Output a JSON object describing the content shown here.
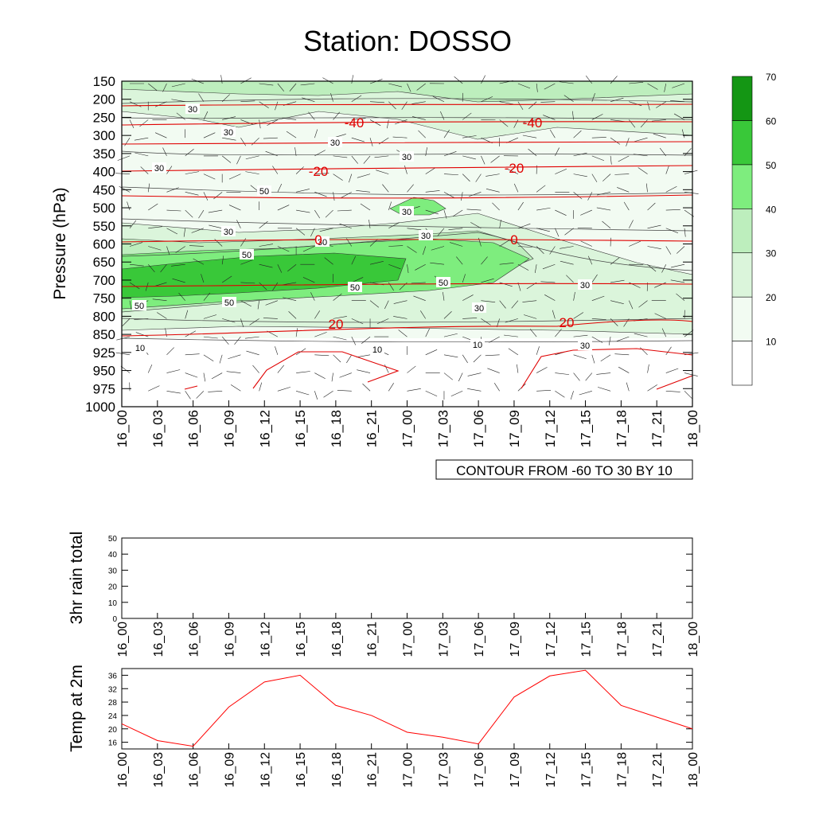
{
  "title": "Station: DOSSO",
  "time_labels": [
    "16_00",
    "16_03",
    "16_06",
    "16_09",
    "16_12",
    "16_15",
    "16_18",
    "16_21",
    "17_00",
    "17_03",
    "17_06",
    "17_09",
    "17_12",
    "17_15",
    "17_18",
    "17_21",
    "18_00"
  ],
  "chart_data": [
    {
      "type": "heatmap",
      "name": "pressure-time-section",
      "ylabel": "Pressure (hPa)",
      "y_ticks": [
        150,
        200,
        250,
        300,
        350,
        400,
        450,
        500,
        550,
        600,
        650,
        700,
        750,
        800,
        850,
        925,
        950,
        975,
        1000
      ],
      "colorbar": {
        "levels": [
          10,
          20,
          30,
          40,
          50,
          60,
          70
        ],
        "colors": [
          "#ffffff",
          "#f2fbf2",
          "#dbf5db",
          "#bdeebd",
          "#7eed7e",
          "#39c839",
          "#149614"
        ]
      },
      "contour_labels_black": [
        "30",
        "30",
        "30",
        "30",
        "30",
        "50",
        "30",
        "30",
        "30",
        "30",
        "50",
        "50",
        "50",
        "50",
        "50",
        "30",
        "10",
        "10",
        "10",
        "30",
        "30"
      ],
      "contour_labels_red": [
        "-40",
        "-40",
        "-20",
        "-20",
        "0",
        "0",
        "20",
        "20"
      ],
      "info_box": "CONTOUR FROM -60 TO 30 BY 10"
    },
    {
      "type": "line",
      "name": "rain",
      "ylabel": "3hr rain total",
      "ylim": [
        0,
        50
      ],
      "y_ticks": [
        0,
        10,
        20,
        30,
        40,
        50
      ],
      "values": [
        0,
        0,
        0,
        0,
        0,
        0,
        0,
        0,
        0,
        0,
        0,
        0,
        0,
        0,
        0,
        0,
        0
      ]
    },
    {
      "type": "line",
      "name": "temp",
      "ylabel": "Temp at 2m",
      "ylim": [
        14,
        38
      ],
      "y_ticks": [
        16,
        20,
        24,
        28,
        32,
        36
      ],
      "color": "#ff0000",
      "values": [
        21.5,
        16.5,
        14.8,
        26.5,
        34.0,
        36.0,
        27.0,
        24.0,
        19.0,
        17.5,
        15.5,
        29.5,
        35.8,
        37.5,
        27.0,
        23.5,
        20.0
      ]
    }
  ]
}
